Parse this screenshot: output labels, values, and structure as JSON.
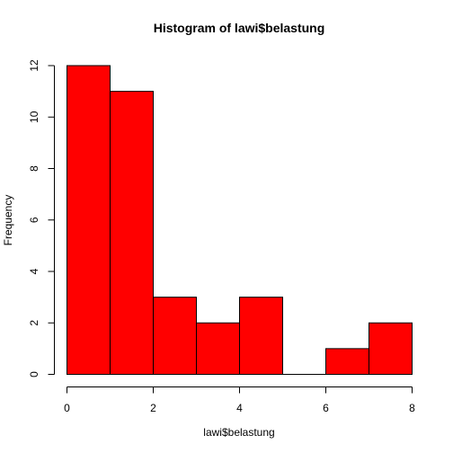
{
  "chart_data": {
    "type": "bar",
    "title": "Histogram of lawi$belastung",
    "xlabel": "lawi$belastung",
    "ylabel": "Frequency",
    "bins": [
      {
        "x0": 0,
        "x1": 1,
        "count": 12
      },
      {
        "x0": 1,
        "x1": 2,
        "count": 11
      },
      {
        "x0": 2,
        "x1": 3,
        "count": 3
      },
      {
        "x0": 3,
        "x1": 4,
        "count": 2
      },
      {
        "x0": 4,
        "x1": 5,
        "count": 3
      },
      {
        "x0": 5,
        "x1": 6,
        "count": 0
      },
      {
        "x0": 6,
        "x1": 7,
        "count": 1
      },
      {
        "x0": 7,
        "x1": 8,
        "count": 2
      }
    ],
    "xlim": [
      0,
      8
    ],
    "ylim": [
      0,
      12
    ],
    "xticks": [
      0,
      2,
      4,
      6,
      8
    ],
    "yticks": [
      0,
      2,
      4,
      6,
      8,
      10,
      12
    ],
    "bar_color": "#ff0000",
    "grid": false
  }
}
